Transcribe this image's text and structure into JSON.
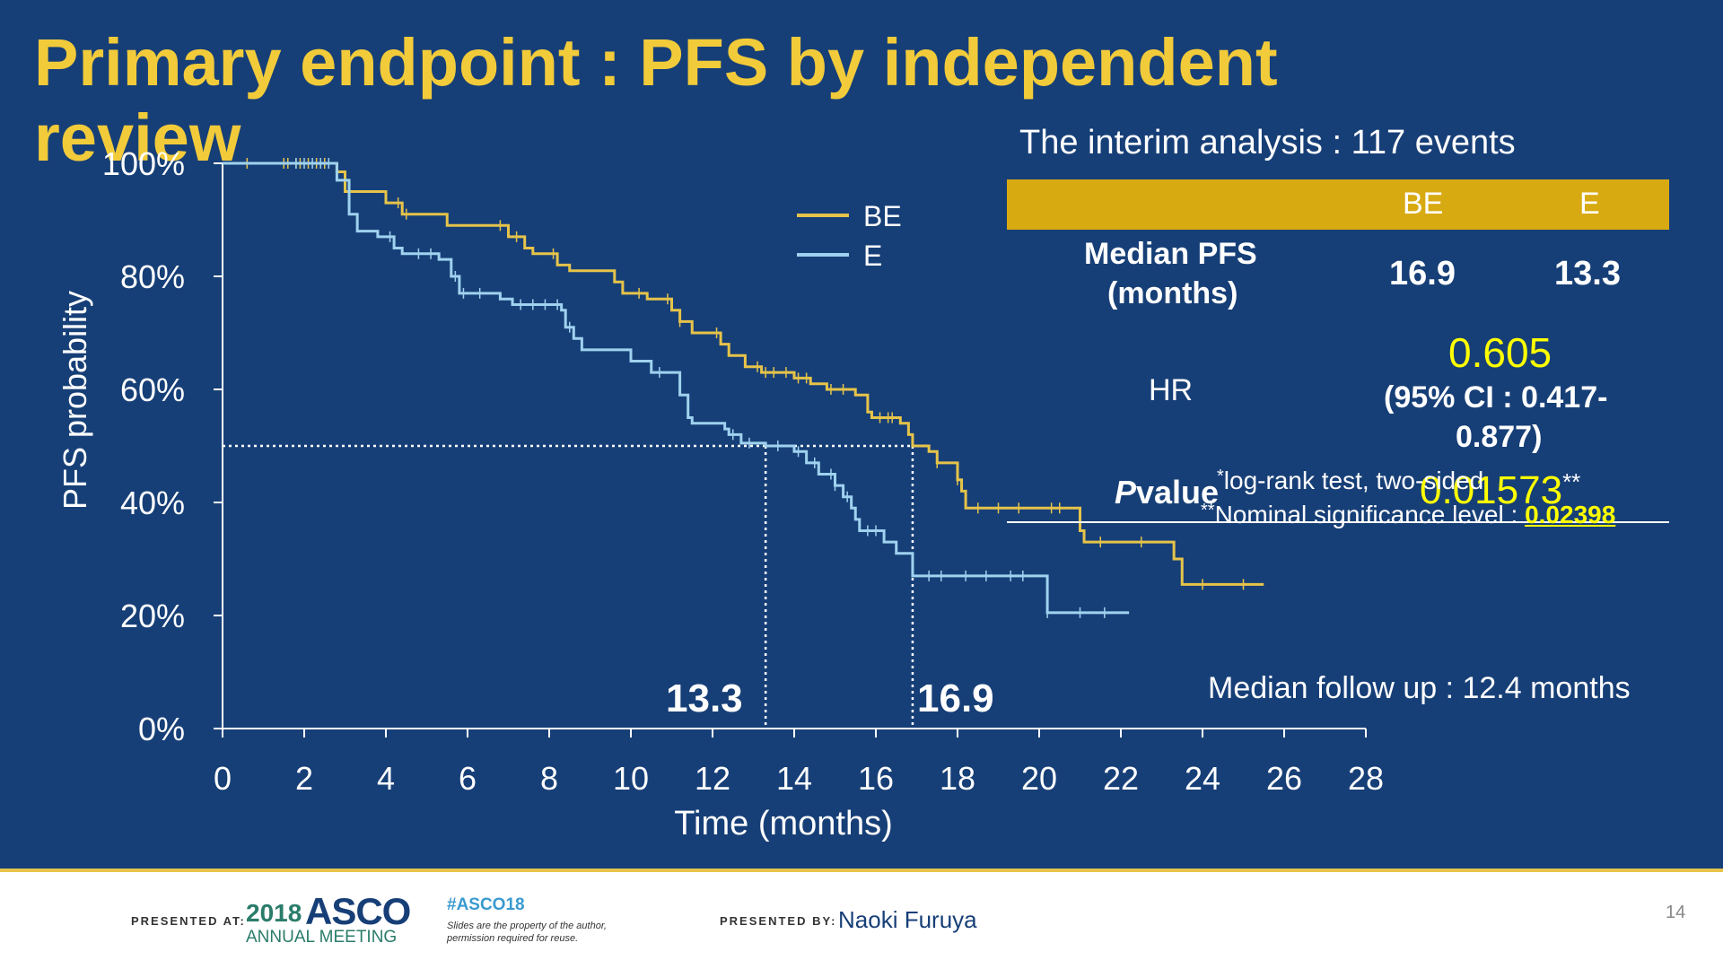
{
  "slide": {
    "title": "Primary endpoint  :  PFS by independent review",
    "interim_text": "The interim analysis : 117 events",
    "table": {
      "headers": [
        "",
        "BE",
        "E"
      ],
      "median_label_1": "Median PFS",
      "median_label_2": "(months)",
      "median_be": "16.9",
      "median_e": "13.3",
      "hr_label": "HR",
      "hr_value": "0.605",
      "ci_line1": "(95% CI : 0.417-",
      "ci_line2": "0.877)",
      "pvalue_label_p": "P",
      "pvalue_label_rest": "value",
      "pvalue_value": "0.01573",
      "pvalue_mark": "**"
    },
    "footnote_1_mark": "*",
    "footnote_1": "log-rank test, two-sided",
    "footnote_2_mark": "**",
    "footnote_2": "Nominal significance level : ",
    "footnote_2_value": "0.02398",
    "median_followup": "Median follow up : 12.4 months",
    "median_marker_e": "13.3",
    "median_marker_be": "16.9",
    "colors": {
      "background": "#173f77",
      "title": "#f2cb3a",
      "be": "#e6c44a",
      "e": "#9fd2ef",
      "highlight": "#ffff00",
      "table_header": "#d8aa12"
    }
  },
  "footer": {
    "presented_at": "PRESENTED AT:",
    "asco_year": "2018",
    "asco_name": "ASCO",
    "asco_meeting": "ANNUAL MEETING",
    "hashtag": "#ASCO18",
    "notice_1": "Slides are the property of the author,",
    "notice_2": "permission required for reuse.",
    "presented_by": "PRESENTED BY:",
    "presenter": "Naoki Furuya",
    "page_number": "14"
  },
  "chart_data": {
    "type": "line",
    "subtype": "kaplan-meier-step",
    "xlabel": "Time (months)",
    "ylabel": "PFS probability",
    "xlim": [
      0,
      28
    ],
    "ylim": [
      0,
      100
    ],
    "x_ticks": [
      0,
      2,
      4,
      6,
      8,
      10,
      12,
      14,
      16,
      18,
      20,
      22,
      24,
      26,
      28
    ],
    "y_ticks": [
      0,
      20,
      40,
      60,
      80,
      100
    ],
    "y_tick_labels": [
      "0%",
      "20%",
      "40%",
      "60%",
      "80%",
      "100%"
    ],
    "legend_position": "top-middle",
    "median_reference": {
      "y": 50,
      "x_e": 13.3,
      "x_be": 16.9
    },
    "series": [
      {
        "name": "BE",
        "color": "#e6c44a",
        "steps": [
          [
            0,
            100
          ],
          [
            2.8,
            98.5
          ],
          [
            3,
            95
          ],
          [
            4,
            93
          ],
          [
            4.4,
            91
          ],
          [
            5.5,
            89
          ],
          [
            7,
            87
          ],
          [
            7.4,
            85
          ],
          [
            7.6,
            84
          ],
          [
            8.2,
            82
          ],
          [
            8.5,
            81
          ],
          [
            9.6,
            79
          ],
          [
            9.8,
            77
          ],
          [
            10.4,
            76
          ],
          [
            11,
            74
          ],
          [
            11.2,
            72
          ],
          [
            11.5,
            70
          ],
          [
            12.2,
            68
          ],
          [
            12.4,
            66
          ],
          [
            12.8,
            64
          ],
          [
            13.2,
            63
          ],
          [
            14,
            62
          ],
          [
            14.4,
            61
          ],
          [
            14.8,
            60
          ],
          [
            15.5,
            59
          ],
          [
            15.8,
            56
          ],
          [
            15.9,
            55
          ],
          [
            16.6,
            54
          ],
          [
            16.8,
            52
          ],
          [
            16.9,
            50
          ],
          [
            17.3,
            49
          ],
          [
            17.5,
            47
          ],
          [
            18,
            44
          ],
          [
            18.1,
            42
          ],
          [
            18.2,
            39
          ],
          [
            21,
            35
          ],
          [
            21.1,
            33
          ],
          [
            23.3,
            30
          ],
          [
            23.5,
            25.5
          ],
          [
            25.5,
            25.5
          ]
        ],
        "censor_x": [
          0.6,
          1.5,
          1.6,
          1.8,
          1.9,
          2.1,
          2.3,
          2.5,
          4.3,
          4.5,
          6.8,
          7.2,
          8.1,
          10.2,
          10.9,
          11.2,
          12.1,
          13.1,
          13.3,
          13.5,
          13.8,
          14.1,
          14.3,
          14.9,
          15.2,
          16.1,
          16.3,
          16.4,
          17.5,
          18.0,
          18.5,
          19.0,
          19.5,
          20.3,
          20.5,
          21.5,
          22.5,
          24.0,
          25.0
        ],
        "end_x": 25.5
      },
      {
        "name": "E",
        "color": "#9fd2ef",
        "steps": [
          [
            0,
            100
          ],
          [
            2.8,
            97
          ],
          [
            3.1,
            91
          ],
          [
            3.3,
            88
          ],
          [
            3.8,
            87
          ],
          [
            4.2,
            85
          ],
          [
            4.4,
            84
          ],
          [
            5.3,
            83
          ],
          [
            5.6,
            80
          ],
          [
            5.8,
            77
          ],
          [
            6.8,
            76
          ],
          [
            7.1,
            75
          ],
          [
            8.3,
            74
          ],
          [
            8.4,
            71
          ],
          [
            8.6,
            69
          ],
          [
            8.8,
            67
          ],
          [
            10,
            65
          ],
          [
            10.5,
            63
          ],
          [
            11.2,
            59
          ],
          [
            11.4,
            55
          ],
          [
            11.5,
            54
          ],
          [
            12.3,
            53
          ],
          [
            12.4,
            52
          ],
          [
            12.7,
            50.5
          ],
          [
            13.3,
            50
          ],
          [
            14,
            49
          ],
          [
            14.3,
            47
          ],
          [
            14.6,
            45
          ],
          [
            15,
            43
          ],
          [
            15.2,
            41
          ],
          [
            15.4,
            39
          ],
          [
            15.5,
            37
          ],
          [
            15.6,
            35
          ],
          [
            16.2,
            33
          ],
          [
            16.5,
            31
          ],
          [
            16.9,
            27
          ],
          [
            20.2,
            20.5
          ],
          [
            22.2,
            20.5
          ]
        ],
        "censor_x": [
          1.8,
          2.0,
          2.2,
          2.4,
          2.6,
          4.1,
          4.8,
          5.1,
          5.7,
          5.9,
          6.3,
          7.3,
          7.6,
          7.9,
          8.2,
          8.5,
          10.7,
          12.5,
          12.9,
          13.6,
          14.1,
          14.5,
          14.9,
          15.0,
          15.3,
          15.8,
          16.0,
          17.3,
          17.6,
          18.2,
          18.7,
          19.3,
          19.6,
          20.2,
          21.0,
          21.6
        ],
        "end_x": 22.2
      }
    ]
  }
}
